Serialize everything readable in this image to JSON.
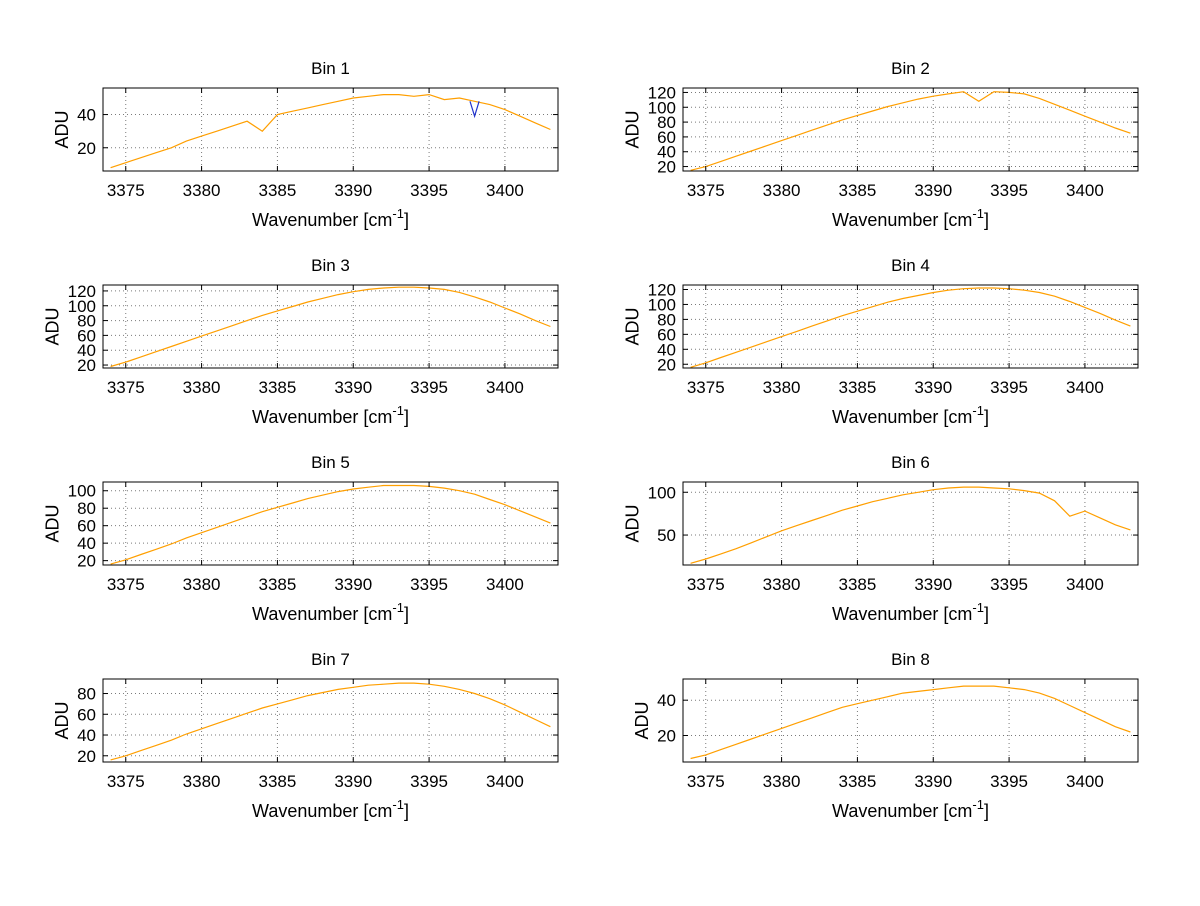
{
  "figure": {
    "background": "#ffffff",
    "rows": 4,
    "cols": 2
  },
  "chart_data": [
    {
      "type": "line",
      "title": "Bin 1",
      "xlabel": "Wavenumber [cm^{-1}]",
      "ylabel": "ADU",
      "xlim": [
        3373.5,
        3403.5
      ],
      "ylim": [
        6,
        56
      ],
      "xticks": [
        3375,
        3380,
        3385,
        3390,
        3395,
        3400
      ],
      "yticks": [
        20,
        40
      ],
      "grid": true,
      "legend": "none",
      "series": [
        {
          "name": "spectrum",
          "color": "#ff9f00",
          "x": [
            3374,
            3375,
            3376,
            3377,
            3378,
            3379,
            3380,
            3381,
            3382,
            3383,
            3384,
            3385,
            3386,
            3387,
            3388,
            3389,
            3390,
            3391,
            3392,
            3393,
            3394,
            3395,
            3396,
            3397,
            3398,
            3399,
            3400,
            3401,
            3402,
            3403
          ],
          "y": [
            8,
            11,
            14,
            17,
            20,
            24,
            27,
            30,
            33,
            36,
            30,
            40,
            42,
            44,
            46,
            48,
            50,
            51,
            52,
            52,
            51,
            52,
            49,
            50,
            48,
            46,
            43,
            39,
            35,
            31
          ]
        },
        {
          "name": "artifact",
          "color": "#2233cc",
          "x": [
            3397.7,
            3398,
            3398.3
          ],
          "y": [
            48,
            39,
            48
          ]
        }
      ]
    },
    {
      "type": "line",
      "title": "Bin 2",
      "xlabel": "Wavenumber [cm^{-1}]",
      "ylabel": "ADU",
      "xlim": [
        3373.5,
        3403.5
      ],
      "ylim": [
        14,
        126
      ],
      "xticks": [
        3375,
        3380,
        3385,
        3390,
        3395,
        3400
      ],
      "yticks": [
        20,
        40,
        60,
        80,
        100,
        120
      ],
      "grid": true,
      "legend": "none",
      "series": [
        {
          "name": "spectrum",
          "color": "#ff9f00",
          "x": [
            3374,
            3375,
            3376,
            3377,
            3378,
            3379,
            3380,
            3381,
            3382,
            3383,
            3384,
            3385,
            3386,
            3387,
            3388,
            3389,
            3390,
            3391,
            3392,
            3393,
            3394,
            3395,
            3396,
            3397,
            3398,
            3399,
            3400,
            3401,
            3402,
            3403
          ],
          "y": [
            15,
            20,
            27,
            34,
            41,
            48,
            55,
            62,
            69,
            76,
            83,
            89,
            95,
            101,
            106,
            111,
            115,
            118,
            121,
            108,
            121,
            120,
            118,
            112,
            104,
            96,
            88,
            80,
            72,
            65
          ]
        }
      ]
    },
    {
      "type": "line",
      "title": "Bin 3",
      "xlabel": "Wavenumber [cm^{-1}]",
      "ylabel": "ADU",
      "xlim": [
        3373.5,
        3403.5
      ],
      "ylim": [
        16,
        128
      ],
      "xticks": [
        3375,
        3380,
        3385,
        3390,
        3395,
        3400
      ],
      "yticks": [
        20,
        40,
        60,
        80,
        100,
        120
      ],
      "grid": true,
      "legend": "none",
      "series": [
        {
          "name": "spectrum",
          "color": "#ff9f00",
          "x": [
            3374,
            3375,
            3376,
            3377,
            3378,
            3379,
            3380,
            3381,
            3382,
            3383,
            3384,
            3385,
            3386,
            3387,
            3388,
            3389,
            3390,
            3391,
            3392,
            3393,
            3394,
            3395,
            3396,
            3397,
            3398,
            3399,
            3400,
            3401,
            3402,
            3403
          ],
          "y": [
            18,
            24,
            31,
            38,
            45,
            52,
            59,
            66,
            73,
            80,
            87,
            93,
            99,
            105,
            110,
            115,
            119,
            122,
            124,
            125,
            125,
            124,
            122,
            118,
            112,
            105,
            97,
            89,
            80,
            72
          ]
        }
      ]
    },
    {
      "type": "line",
      "title": "Bin 4",
      "xlabel": "Wavenumber [cm^{-1}]",
      "ylabel": "ADU",
      "xlim": [
        3373.5,
        3403.5
      ],
      "ylim": [
        15,
        126
      ],
      "xticks": [
        3375,
        3380,
        3385,
        3390,
        3395,
        3400
      ],
      "yticks": [
        20,
        40,
        60,
        80,
        100,
        120
      ],
      "grid": true,
      "legend": "none",
      "series": [
        {
          "name": "spectrum",
          "color": "#ff9f00",
          "x": [
            3374,
            3375,
            3376,
            3377,
            3378,
            3379,
            3380,
            3381,
            3382,
            3383,
            3384,
            3385,
            3386,
            3387,
            3388,
            3389,
            3390,
            3391,
            3392,
            3393,
            3394,
            3395,
            3396,
            3397,
            3398,
            3399,
            3400,
            3401,
            3402,
            3403
          ],
          "y": [
            16,
            22,
            29,
            36,
            43,
            50,
            57,
            64,
            71,
            78,
            85,
            91,
            97,
            103,
            108,
            112,
            116,
            119,
            121,
            122,
            122,
            121,
            119,
            116,
            111,
            104,
            96,
            88,
            79,
            71
          ]
        }
      ]
    },
    {
      "type": "line",
      "title": "Bin 5",
      "xlabel": "Wavenumber [cm^{-1}]",
      "ylabel": "ADU",
      "xlim": [
        3373.5,
        3403.5
      ],
      "ylim": [
        15,
        110
      ],
      "xticks": [
        3375,
        3380,
        3385,
        3390,
        3395,
        3400
      ],
      "yticks": [
        20,
        40,
        60,
        80,
        100
      ],
      "grid": true,
      "legend": "none",
      "series": [
        {
          "name": "spectrum",
          "color": "#ff9f00",
          "x": [
            3374,
            3375,
            3376,
            3377,
            3378,
            3379,
            3380,
            3381,
            3382,
            3383,
            3384,
            3385,
            3386,
            3387,
            3388,
            3389,
            3390,
            3391,
            3392,
            3393,
            3394,
            3395,
            3396,
            3397,
            3398,
            3399,
            3400,
            3401,
            3402,
            3403
          ],
          "y": [
            16,
            21,
            27,
            33,
            39,
            46,
            52,
            58,
            64,
            70,
            76,
            81,
            86,
            91,
            95,
            99,
            102,
            104,
            106,
            106,
            106,
            105,
            103,
            100,
            96,
            90,
            84,
            77,
            70,
            63
          ]
        }
      ]
    },
    {
      "type": "line",
      "title": "Bin 6",
      "xlabel": "Wavenumber [cm^{-1}]",
      "ylabel": "ADU",
      "xlim": [
        3373.5,
        3403.5
      ],
      "ylim": [
        15,
        112
      ],
      "xticks": [
        3375,
        3380,
        3385,
        3390,
        3395,
        3400
      ],
      "yticks": [
        50,
        100
      ],
      "grid": true,
      "legend": "none",
      "series": [
        {
          "name": "spectrum",
          "color": "#ff9f00",
          "x": [
            3374,
            3375,
            3376,
            3377,
            3378,
            3379,
            3380,
            3381,
            3382,
            3383,
            3384,
            3385,
            3386,
            3387,
            3388,
            3389,
            3390,
            3391,
            3392,
            3393,
            3394,
            3395,
            3396,
            3397,
            3398,
            3399,
            3400,
            3401,
            3402,
            3403
          ],
          "y": [
            17,
            22,
            28,
            34,
            41,
            48,
            55,
            61,
            67,
            73,
            79,
            84,
            89,
            93,
            97,
            100,
            103,
            105,
            106,
            106,
            105,
            104,
            102,
            99,
            90,
            72,
            78,
            70,
            62,
            56
          ]
        }
      ]
    },
    {
      "type": "line",
      "title": "Bin 7",
      "xlabel": "Wavenumber [cm^{-1}]",
      "ylabel": "ADU",
      "xlim": [
        3373.5,
        3403.5
      ],
      "ylim": [
        14,
        94
      ],
      "xticks": [
        3375,
        3380,
        3385,
        3390,
        3395,
        3400
      ],
      "yticks": [
        20,
        40,
        60,
        80
      ],
      "grid": true,
      "legend": "none",
      "series": [
        {
          "name": "spectrum",
          "color": "#ff9f00",
          "x": [
            3374,
            3375,
            3376,
            3377,
            3378,
            3379,
            3380,
            3381,
            3382,
            3383,
            3384,
            3385,
            3386,
            3387,
            3388,
            3389,
            3390,
            3391,
            3392,
            3393,
            3394,
            3395,
            3396,
            3397,
            3398,
            3399,
            3400,
            3401,
            3402,
            3403
          ],
          "y": [
            16,
            20,
            25,
            30,
            35,
            41,
            46,
            51,
            56,
            61,
            66,
            70,
            74,
            78,
            81,
            84,
            86,
            88,
            89,
            90,
            90,
            89,
            87,
            84,
            80,
            75,
            69,
            62,
            55,
            48
          ]
        }
      ]
    },
    {
      "type": "line",
      "title": "Bin 8",
      "xlabel": "Wavenumber [cm^{-1}]",
      "ylabel": "ADU",
      "xlim": [
        3373.5,
        3403.5
      ],
      "ylim": [
        5,
        52
      ],
      "xticks": [
        3375,
        3380,
        3385,
        3390,
        3395,
        3400
      ],
      "yticks": [
        20,
        40
      ],
      "grid": true,
      "legend": "none",
      "series": [
        {
          "name": "spectrum",
          "color": "#ff9f00",
          "x": [
            3374,
            3375,
            3376,
            3377,
            3378,
            3379,
            3380,
            3381,
            3382,
            3383,
            3384,
            3385,
            3386,
            3387,
            3388,
            3389,
            3390,
            3391,
            3392,
            3393,
            3394,
            3395,
            3396,
            3397,
            3398,
            3399,
            3400,
            3401,
            3402,
            3403
          ],
          "y": [
            7,
            9,
            12,
            15,
            18,
            21,
            24,
            27,
            30,
            33,
            36,
            38,
            40,
            42,
            44,
            45,
            46,
            47,
            48,
            48,
            48,
            47,
            46,
            44,
            41,
            37,
            33,
            29,
            25,
            22
          ]
        }
      ]
    }
  ]
}
